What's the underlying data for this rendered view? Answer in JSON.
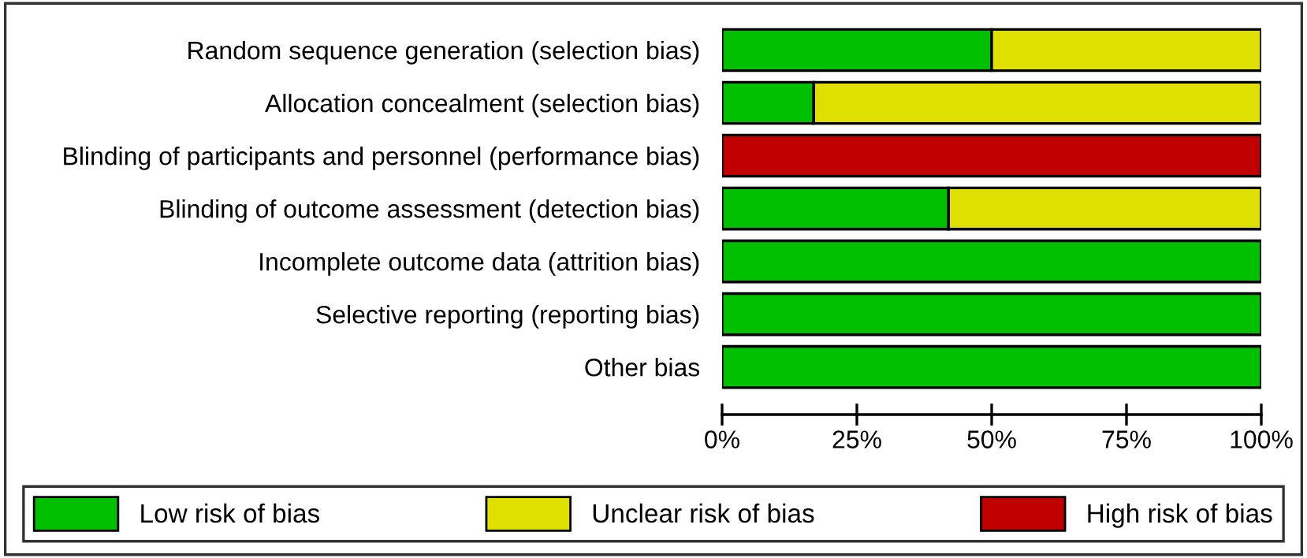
{
  "chart_data": {
    "type": "bar",
    "orientation": "horizontal",
    "stacked": true,
    "categories": [
      "Random sequence generation (selection bias)",
      "Allocation concealment (selection bias)",
      "Blinding of participants and personnel (performance bias)",
      "Blinding of outcome assessment (detection bias)",
      "Incomplete outcome data (attrition bias)",
      "Selective reporting (reporting bias)",
      "Other bias"
    ],
    "series": [
      {
        "name": "Low risk of bias",
        "color": "#00c000",
        "values": [
          50,
          17,
          0,
          42,
          100,
          100,
          100
        ]
      },
      {
        "name": "Unclear risk of bias",
        "color": "#e0e000",
        "values": [
          50,
          83,
          0,
          58,
          0,
          0,
          0
        ]
      },
      {
        "name": "High risk of bias",
        "color": "#c00000",
        "values": [
          0,
          0,
          100,
          0,
          0,
          0,
          0
        ]
      }
    ],
    "xlim": [
      0,
      100
    ],
    "xticks": [
      {
        "value": 0,
        "label": "0%"
      },
      {
        "value": 25,
        "label": "25%"
      },
      {
        "value": 50,
        "label": "50%"
      },
      {
        "value": 75,
        "label": "75%"
      },
      {
        "value": 100,
        "label": "100%"
      }
    ],
    "grid": false,
    "legend": "bottom"
  }
}
